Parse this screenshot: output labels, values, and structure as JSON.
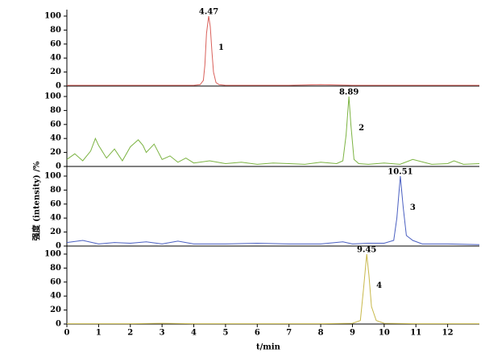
{
  "ylabel": "强度 (intensity) /%",
  "chart_data": [
    {
      "type": "line",
      "color": "#d9605a",
      "peak_label": "4.47",
      "peak_number": "1",
      "x": [
        0,
        1,
        2,
        3,
        4,
        4.2,
        4.3,
        4.35,
        4.4,
        4.47,
        4.52,
        4.57,
        4.62,
        4.7,
        4.8,
        5,
        6,
        7,
        8,
        9,
        10,
        11,
        12,
        13
      ],
      "values": [
        1,
        1,
        1,
        1,
        1,
        2,
        8,
        30,
        75,
        100,
        85,
        50,
        20,
        5,
        2,
        1,
        1,
        1,
        2,
        1,
        1,
        1,
        1,
        1
      ],
      "xlim": [
        0,
        13
      ],
      "ylim": [
        0,
        100
      ],
      "yticks": [
        0,
        20,
        40,
        60,
        80,
        100
      ]
    },
    {
      "type": "line",
      "color": "#7cb342",
      "peak_label": "8.89",
      "peak_number": "2",
      "x": [
        0,
        0.25,
        0.5,
        0.75,
        0.9,
        1.0,
        1.25,
        1.5,
        1.75,
        2.0,
        2.25,
        2.4,
        2.5,
        2.75,
        3.0,
        3.25,
        3.5,
        3.75,
        4.0,
        4.5,
        5.0,
        5.5,
        6.0,
        6.5,
        7.0,
        7.5,
        8.0,
        8.5,
        8.7,
        8.8,
        8.89,
        8.95,
        9.05,
        9.2,
        9.5,
        10.0,
        10.5,
        10.9,
        11.5,
        12.0,
        12.2,
        12.5,
        13.0
      ],
      "values": [
        10,
        18,
        8,
        22,
        40,
        30,
        12,
        25,
        8,
        28,
        38,
        30,
        20,
        32,
        10,
        15,
        6,
        12,
        5,
        8,
        4,
        6,
        3,
        5,
        4,
        3,
        6,
        4,
        8,
        45,
        100,
        60,
        10,
        4,
        3,
        5,
        3,
        10,
        3,
        4,
        8,
        3,
        4
      ],
      "xlim": [
        0,
        13
      ],
      "ylim": [
        0,
        100
      ],
      "yticks": [
        0,
        20,
        40,
        60,
        80,
        100
      ]
    },
    {
      "type": "line",
      "color": "#4a5fc1",
      "peak_label": "10.51",
      "peak_number": "3",
      "x": [
        0,
        0.5,
        1,
        1.5,
        2,
        2.5,
        3,
        3.5,
        4,
        5,
        6,
        7,
        8,
        8.7,
        9,
        9.5,
        10,
        10.3,
        10.4,
        10.51,
        10.6,
        10.7,
        10.9,
        11.2,
        12,
        13
      ],
      "values": [
        5,
        8,
        3,
        5,
        4,
        6,
        3,
        7,
        3,
        3,
        4,
        3,
        3,
        6,
        3,
        4,
        4,
        8,
        40,
        100,
        55,
        15,
        8,
        3,
        3,
        2
      ],
      "xlim": [
        0,
        13
      ],
      "ylim": [
        0,
        100
      ],
      "yticks": [
        0,
        20,
        40,
        60,
        80,
        100
      ]
    },
    {
      "type": "line",
      "color": "#c8b84a",
      "peak_label": "9.45",
      "peak_number": "4",
      "x": [
        0,
        2,
        3,
        4,
        6,
        8,
        9,
        9.25,
        9.35,
        9.45,
        9.52,
        9.6,
        9.75,
        10,
        11,
        13
      ],
      "values": [
        0.5,
        0.5,
        1,
        0.5,
        0.5,
        0.5,
        1,
        5,
        50,
        100,
        70,
        25,
        5,
        1,
        0.5,
        0.5
      ],
      "xlim": [
        0,
        13
      ],
      "ylim": [
        0,
        100
      ],
      "yticks": [
        0,
        20,
        40,
        60,
        80,
        100
      ],
      "xticks": [
        0,
        1,
        2,
        3,
        4,
        5,
        6,
        7,
        8,
        9,
        10,
        11,
        12
      ],
      "xlabel": "t/min"
    }
  ]
}
